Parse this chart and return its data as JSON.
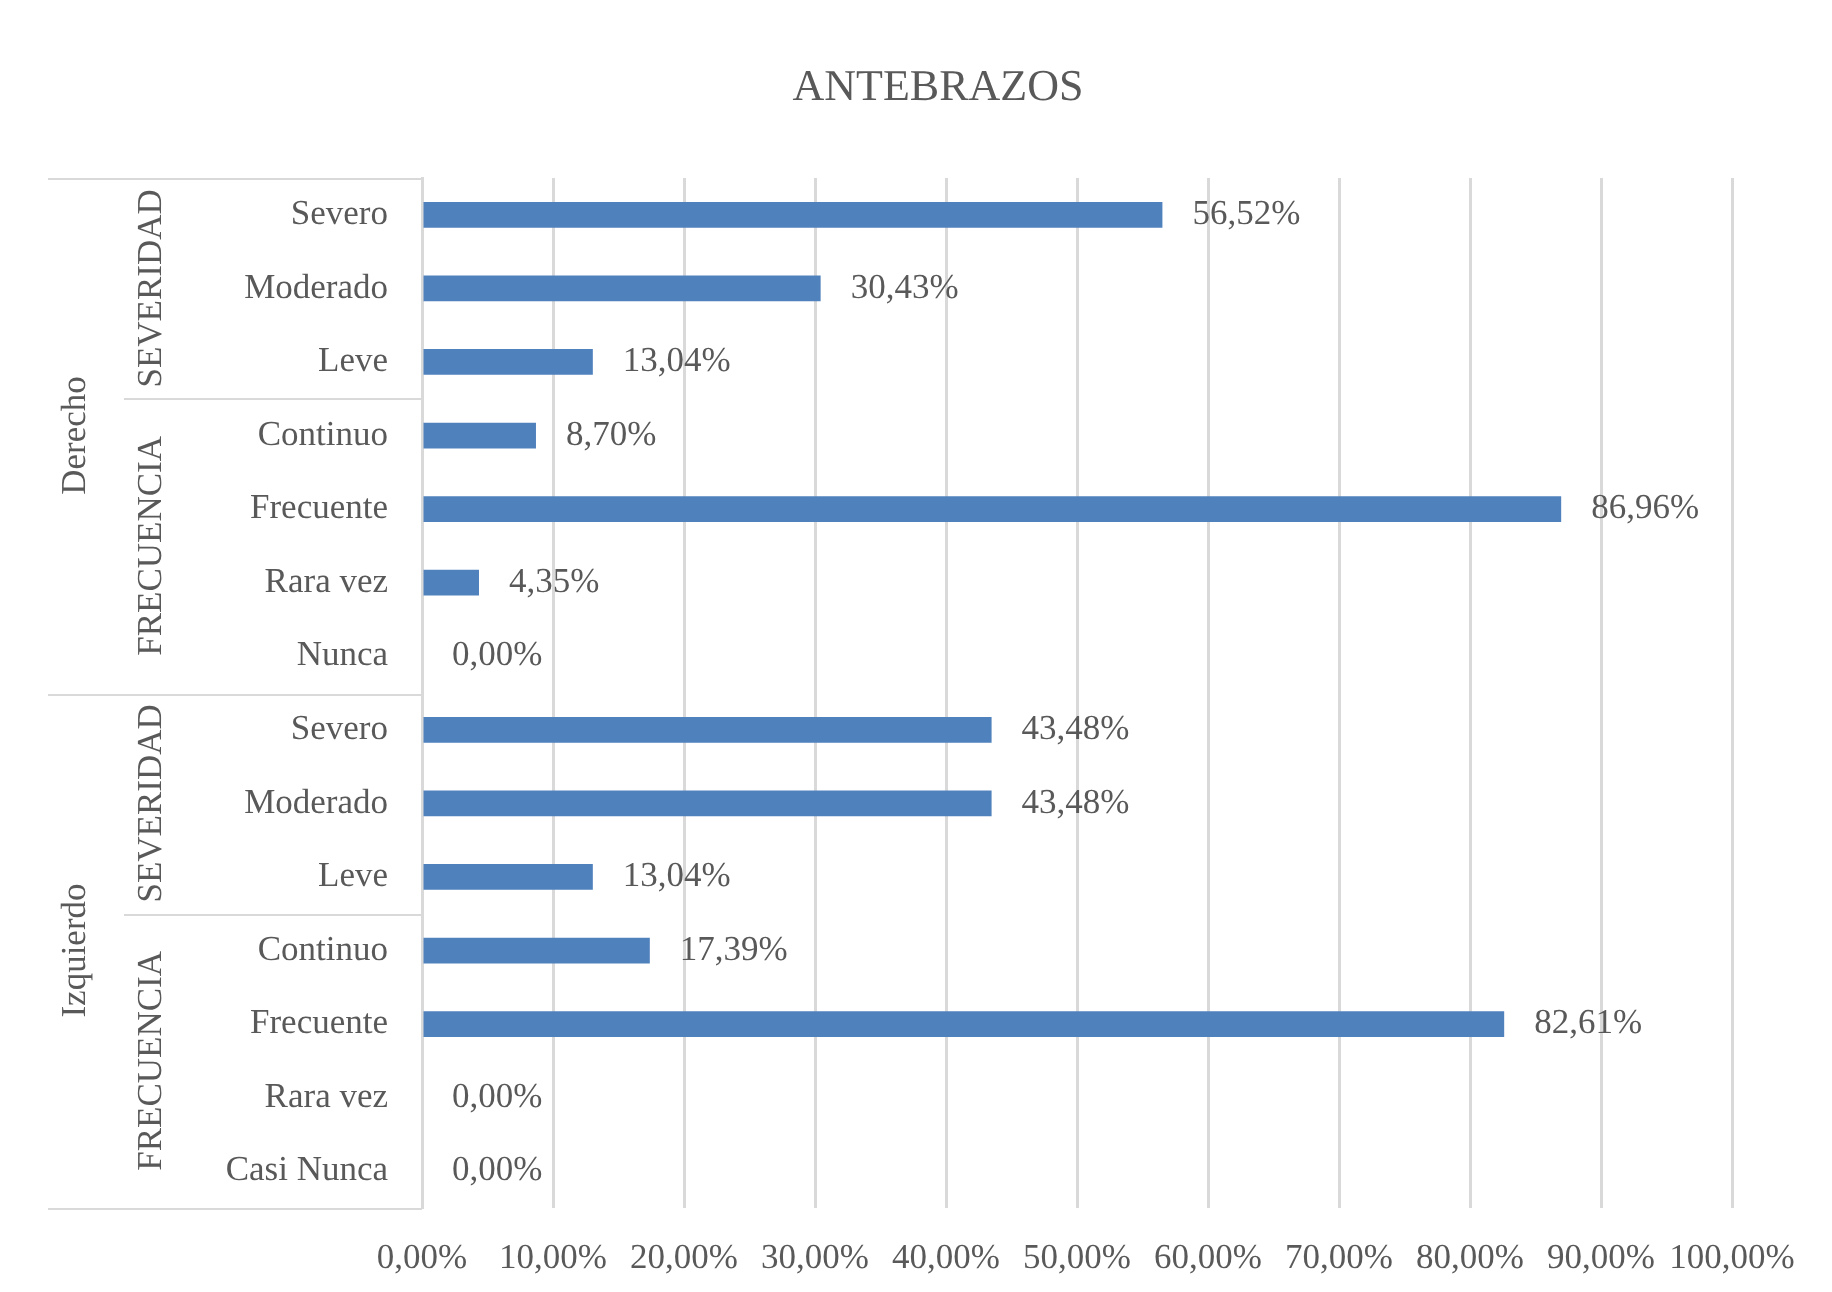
{
  "chart_data": {
    "type": "bar",
    "orientation": "horizontal",
    "title": "ANTEBRAZOS",
    "categories": [
      "Severo",
      "Moderado",
      "Leve",
      "Continuo",
      "Frecuente",
      "Rara vez",
      "Nunca",
      "Severo",
      "Moderado",
      "Leve",
      "Continuo",
      "Frecuente",
      "Rara vez",
      "Casi Nunca"
    ],
    "values": [
      56.52,
      30.43,
      13.04,
      8.7,
      86.96,
      4.35,
      0.0,
      43.48,
      43.48,
      13.04,
      17.39,
      82.61,
      0.0,
      0.0
    ],
    "value_labels": [
      "56,52%",
      "30,43%",
      "13,04%",
      "8,70%",
      "86,96%",
      "4,35%",
      "0,00%",
      "43,48%",
      "43,48%",
      "13,04%",
      "17,39%",
      "82,61%",
      "0,00%",
      "0,00%"
    ],
    "color": "#4f81bd",
    "xlim": [
      0,
      100
    ],
    "xticks": [
      {
        "value": 0,
        "label": "0,00%"
      },
      {
        "value": 10,
        "label": "10,00%"
      },
      {
        "value": 20,
        "label": "20,00%"
      },
      {
        "value": 30,
        "label": "30,00%"
      },
      {
        "value": 40,
        "label": "40,00%"
      },
      {
        "value": 50,
        "label": "50,00%"
      },
      {
        "value": 60,
        "label": "60,00%"
      },
      {
        "value": 70,
        "label": "70,00%"
      },
      {
        "value": 80,
        "label": "80,00%"
      },
      {
        "value": 90,
        "label": "90,00%"
      },
      {
        "value": 100,
        "label": "100,00%"
      }
    ],
    "grid": "x",
    "annotations": [
      "Derecho",
      "SEVERIDAD",
      "FRECUENCIA",
      "Izquierdo",
      "SEVERIDAD",
      "FRECUENCIA"
    ]
  }
}
